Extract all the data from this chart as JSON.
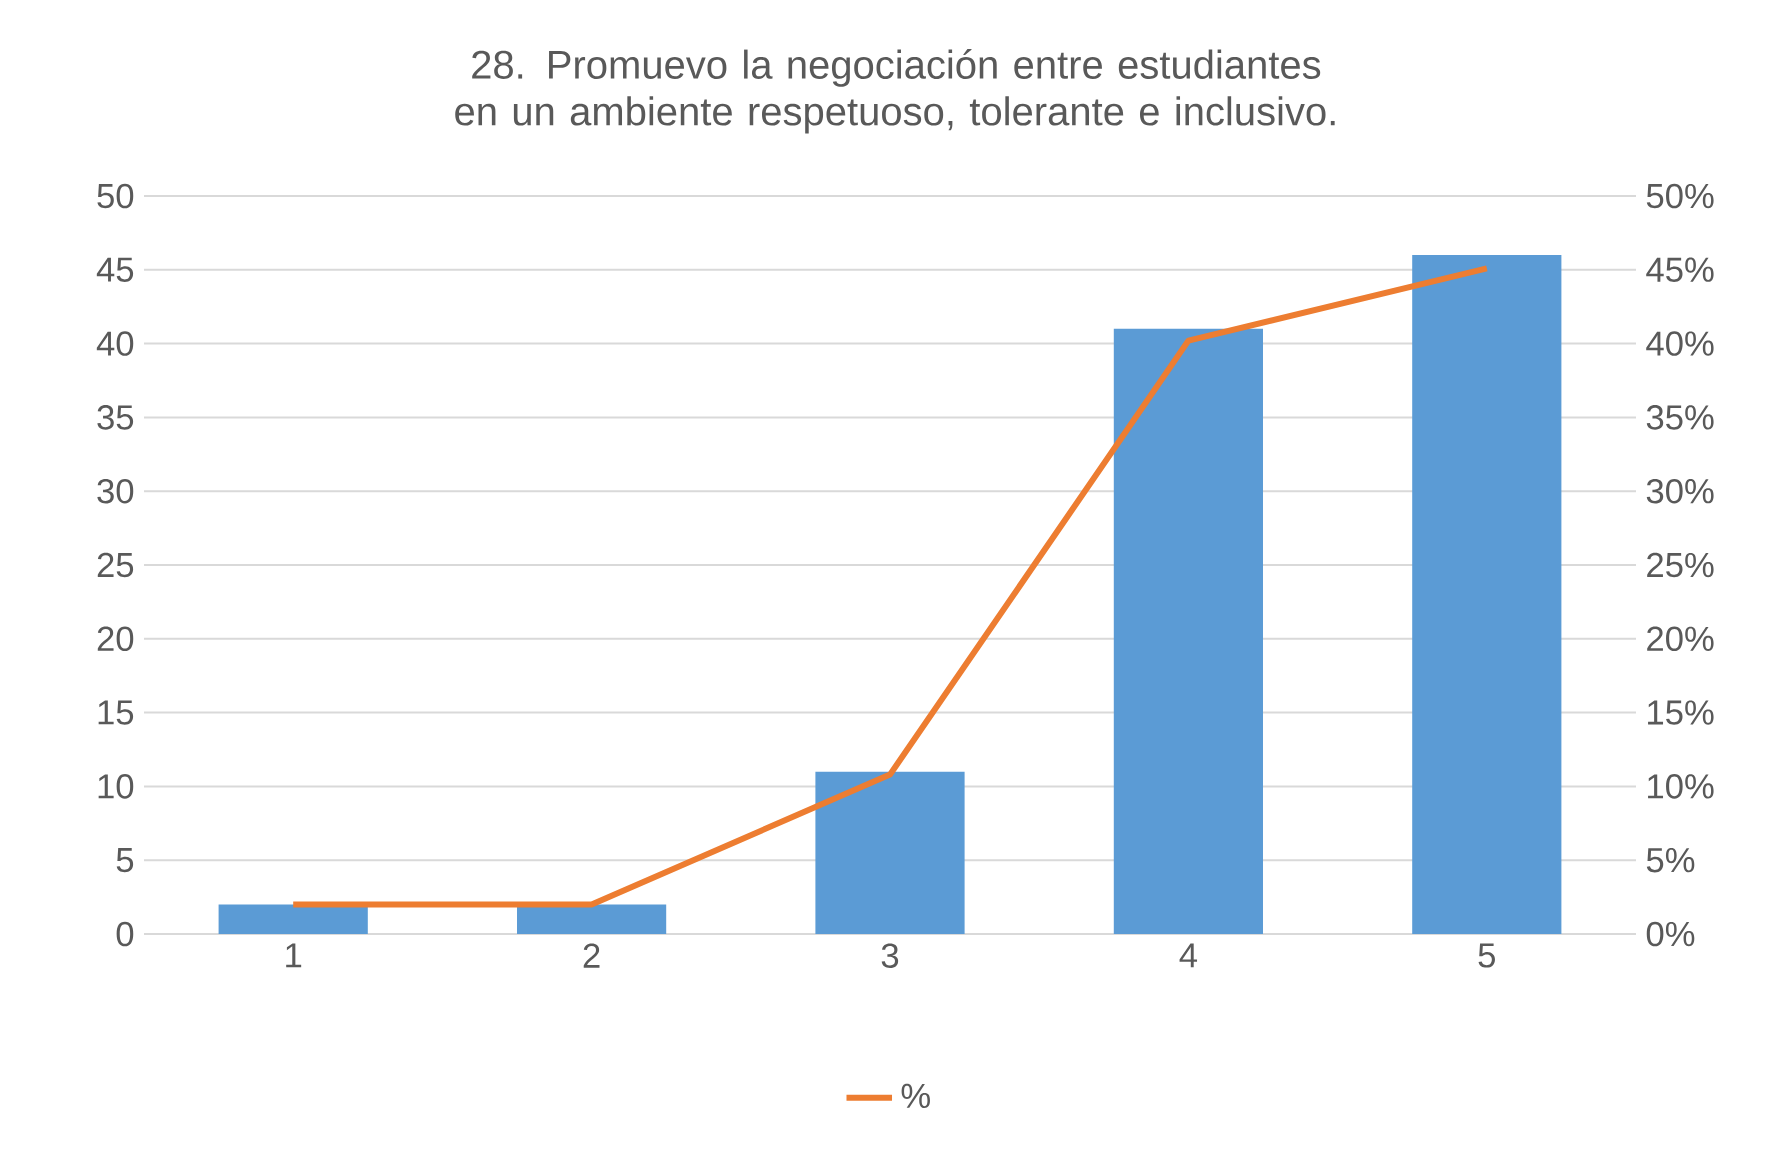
{
  "chart_data": {
    "type": "bar",
    "title": "28. Promuevo la negociación entre estudiantes en un ambiente respetuoso, tolerante e inclusivo.",
    "categories": [
      "1",
      "2",
      "3",
      "4",
      "5"
    ],
    "series": [
      {
        "color": "#5b9bd5",
        "values": [
          2,
          2,
          11,
          41,
          46
        ]
      },
      {
        "type": "line",
        "name": "%",
        "color": "#ed7d31",
        "axis": "y2",
        "values": [
          2,
          2,
          10.8,
          40.2,
          45.1
        ]
      }
    ],
    "ylim": [
      0,
      50
    ],
    "yticks": [
      0,
      5,
      10,
      15,
      20,
      25,
      30,
      35,
      40,
      45,
      50
    ],
    "y2lim": [
      0,
      50
    ],
    "y2ticks": [
      {
        "value": 0,
        "label": "0%"
      },
      {
        "value": 5,
        "label": "5%"
      },
      {
        "value": 10,
        "label": "10%"
      },
      {
        "value": 15,
        "label": "15%"
      },
      {
        "value": 20,
        "label": "20%"
      },
      {
        "value": 25,
        "label": "25%"
      },
      {
        "value": 30,
        "label": "30%"
      },
      {
        "value": 35,
        "label": "35%"
      },
      {
        "value": 40,
        "label": "40%"
      },
      {
        "value": 45,
        "label": "45%"
      },
      {
        "value": 50,
        "label": "50%"
      }
    ],
    "grid": "y",
    "legend": "bottom"
  }
}
